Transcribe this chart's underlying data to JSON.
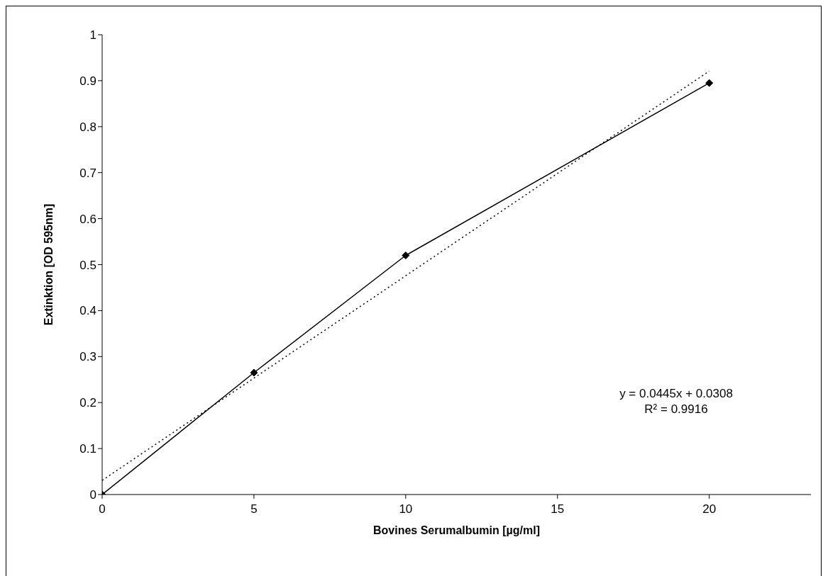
{
  "chart_data": {
    "type": "line",
    "xlabel": "Bovines Serumalbumin [µg/ml]",
    "ylabel": "Extinktion [OD 595nm]",
    "xlim": [
      0,
      23.35
    ],
    "xticks": [
      0,
      5,
      10,
      15,
      20
    ],
    "ylim": [
      0,
      1
    ],
    "yticks": [
      0,
      0.1,
      0.2,
      0.3,
      0.4,
      0.5,
      0.6,
      0.7,
      0.8,
      0.9,
      1
    ],
    "series": [
      {
        "color": "#000000",
        "x": [
          0,
          5,
          10,
          20
        ],
        "values": [
          0,
          0.265,
          0.52,
          0.895
        ],
        "marker": "diamond",
        "line_style": "solid"
      },
      {
        "type": "line",
        "color": "#000000",
        "x": [
          0,
          20
        ],
        "values": [
          0.0308,
          0.9208
        ],
        "marker": "none",
        "line_style": "dotted"
      }
    ],
    "annotations": [
      "y = 0.0445x + 0.0308",
      "R² = 0.9916"
    ]
  }
}
